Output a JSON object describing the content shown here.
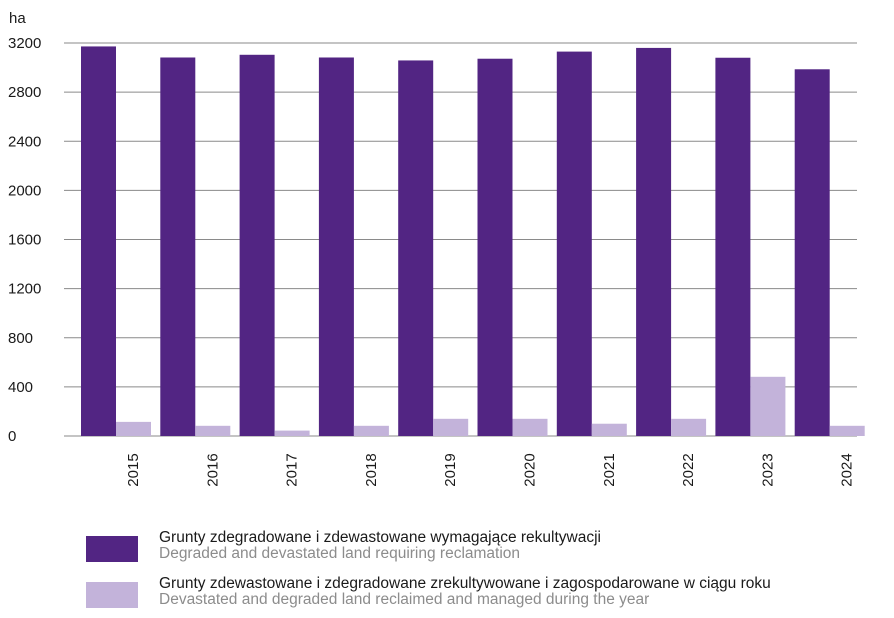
{
  "colors": {
    "series1": "#522583",
    "series2": "#c3b3da",
    "grid": "#8a8a8a"
  },
  "chart_data": {
    "type": "bar",
    "ylabel": "ha",
    "ylim": [
      0,
      3200
    ],
    "yticks": [
      0,
      400,
      800,
      1200,
      1600,
      2000,
      2400,
      2800,
      3200
    ],
    "grid": true,
    "legend_position": "bottom",
    "categories": [
      "2015",
      "2016",
      "2017",
      "2018",
      "2019",
      "2020",
      "2021",
      "2022",
      "2023",
      "2024"
    ],
    "series": [
      {
        "name": "Grunty zdegradowane i zdewastowane wymagające rekultywacji",
        "name_en": "Degraded and devastated land requiring reclamation",
        "values": [
          3172,
          3082,
          3104,
          3082,
          3058,
          3072,
          3130,
          3160,
          3080,
          2986
        ]
      },
      {
        "name": "Grunty zdewastowane i zdegradowane zrekultywowane i zagospodarowane w ciągu roku",
        "name_en": "Devastated and degraded land reclaimed and managed during the year",
        "values": [
          115,
          83,
          44,
          83,
          140,
          140,
          100,
          140,
          482,
          83
        ]
      }
    ]
  }
}
